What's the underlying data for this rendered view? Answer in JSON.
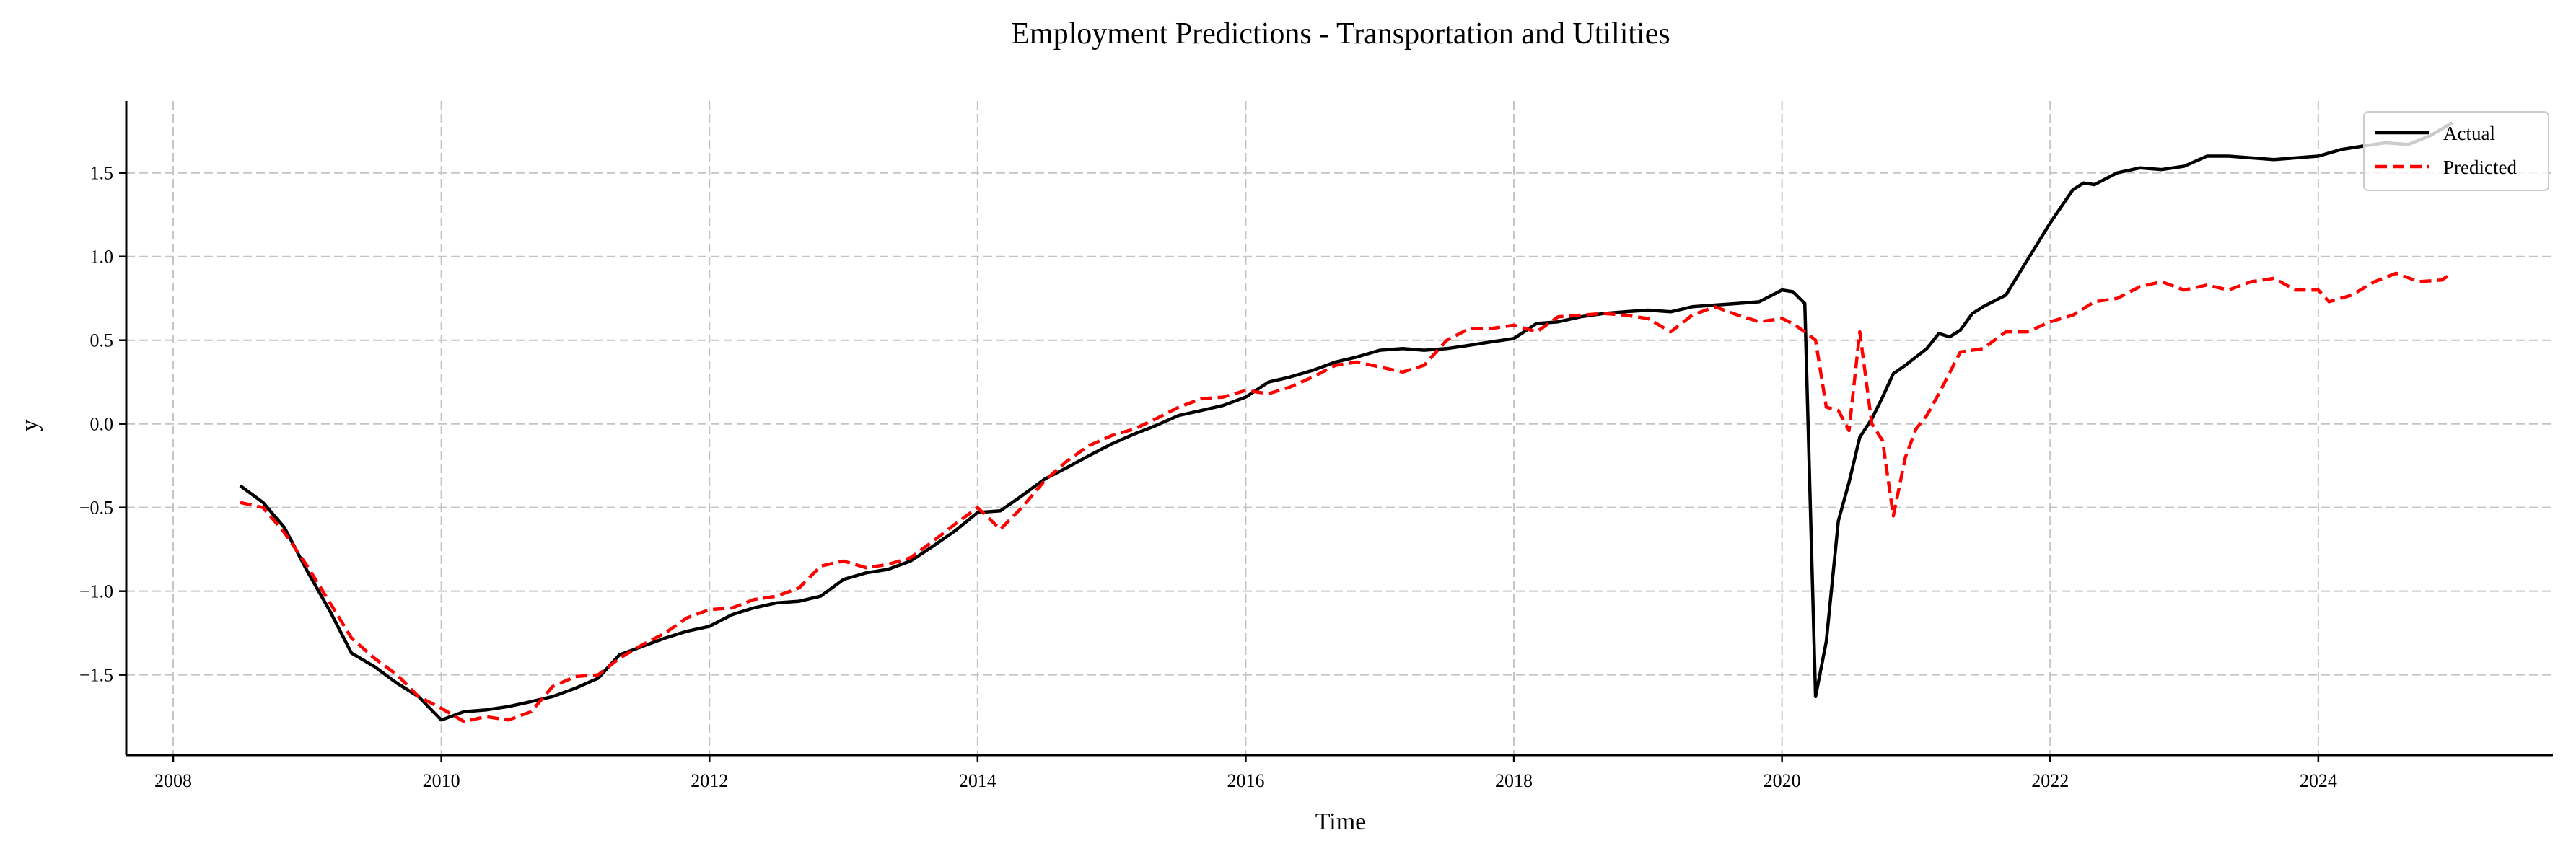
{
  "chart_data": {
    "type": "line",
    "title": "Employment Predictions - Transportation and Utilities",
    "xlabel": "Time",
    "ylabel": "y",
    "xlim": [
      2007.65,
      2025.75
    ],
    "ylim": [
      -1.98,
      1.93
    ],
    "x_ticks": [
      2008,
      2010,
      2012,
      2014,
      2016,
      2018,
      2020,
      2022,
      2024
    ],
    "x_tick_labels": [
      "2008",
      "2010",
      "2012",
      "2014",
      "2016",
      "2018",
      "2020",
      "2022",
      "2024"
    ],
    "y_ticks": [
      -1.5,
      -1.0,
      -0.5,
      0.0,
      0.5,
      1.0,
      1.5
    ],
    "y_tick_labels": [
      "−1.5",
      "−1.0",
      "−0.5",
      "0.0",
      "0.5",
      "1.0",
      "1.5"
    ],
    "grid": true,
    "legend_position": "top-right",
    "series": [
      {
        "name": "Actual",
        "color": "#000000",
        "dash": "solid",
        "points": [
          [
            2008.5,
            -0.37
          ],
          [
            2008.67,
            -0.47
          ],
          [
            2008.83,
            -0.62
          ],
          [
            2009.0,
            -0.88
          ],
          [
            2009.17,
            -1.12
          ],
          [
            2009.33,
            -1.37
          ],
          [
            2009.5,
            -1.45
          ],
          [
            2009.67,
            -1.55
          ],
          [
            2009.83,
            -1.63
          ],
          [
            2010.0,
            -1.77
          ],
          [
            2010.17,
            -1.72
          ],
          [
            2010.33,
            -1.71
          ],
          [
            2010.5,
            -1.69
          ],
          [
            2010.67,
            -1.66
          ],
          [
            2010.83,
            -1.63
          ],
          [
            2011.0,
            -1.58
          ],
          [
            2011.17,
            -1.52
          ],
          [
            2011.33,
            -1.38
          ],
          [
            2011.5,
            -1.33
          ],
          [
            2011.67,
            -1.28
          ],
          [
            2011.83,
            -1.24
          ],
          [
            2012.0,
            -1.21
          ],
          [
            2012.17,
            -1.14
          ],
          [
            2012.33,
            -1.1
          ],
          [
            2012.5,
            -1.07
          ],
          [
            2012.67,
            -1.06
          ],
          [
            2012.83,
            -1.03
          ],
          [
            2013.0,
            -0.93
          ],
          [
            2013.17,
            -0.89
          ],
          [
            2013.33,
            -0.87
          ],
          [
            2013.5,
            -0.82
          ],
          [
            2013.67,
            -0.73
          ],
          [
            2013.83,
            -0.64
          ],
          [
            2014.0,
            -0.53
          ],
          [
            2014.17,
            -0.52
          ],
          [
            2014.33,
            -0.43
          ],
          [
            2014.5,
            -0.33
          ],
          [
            2014.67,
            -0.26
          ],
          [
            2014.83,
            -0.19
          ],
          [
            2015.0,
            -0.12
          ],
          [
            2015.17,
            -0.06
          ],
          [
            2015.33,
            -0.01
          ],
          [
            2015.5,
            0.05
          ],
          [
            2015.67,
            0.08
          ],
          [
            2015.83,
            0.11
          ],
          [
            2016.0,
            0.16
          ],
          [
            2016.17,
            0.25
          ],
          [
            2016.33,
            0.28
          ],
          [
            2016.5,
            0.32
          ],
          [
            2016.67,
            0.37
          ],
          [
            2016.83,
            0.4
          ],
          [
            2017.0,
            0.44
          ],
          [
            2017.17,
            0.45
          ],
          [
            2017.33,
            0.44
          ],
          [
            2017.5,
            0.45
          ],
          [
            2017.67,
            0.47
          ],
          [
            2017.83,
            0.49
          ],
          [
            2018.0,
            0.51
          ],
          [
            2018.17,
            0.6
          ],
          [
            2018.33,
            0.61
          ],
          [
            2018.5,
            0.64
          ],
          [
            2018.67,
            0.66
          ],
          [
            2018.83,
            0.67
          ],
          [
            2019.0,
            0.68
          ],
          [
            2019.17,
            0.67
          ],
          [
            2019.33,
            0.7
          ],
          [
            2019.5,
            0.71
          ],
          [
            2019.67,
            0.72
          ],
          [
            2019.83,
            0.73
          ],
          [
            2020.0,
            0.8
          ],
          [
            2020.08,
            0.79
          ],
          [
            2020.17,
            0.72
          ],
          [
            2020.25,
            -1.63
          ],
          [
            2020.33,
            -1.3
          ],
          [
            2020.42,
            -0.58
          ],
          [
            2020.5,
            -0.35
          ],
          [
            2020.58,
            -0.08
          ],
          [
            2020.67,
            0.03
          ],
          [
            2020.75,
            0.16
          ],
          [
            2020.83,
            0.3
          ],
          [
            2020.92,
            0.35
          ],
          [
            2021.0,
            0.4
          ],
          [
            2021.08,
            0.45
          ],
          [
            2021.17,
            0.54
          ],
          [
            2021.25,
            0.52
          ],
          [
            2021.33,
            0.56
          ],
          [
            2021.42,
            0.66
          ],
          [
            2021.5,
            0.7
          ],
          [
            2021.67,
            0.77
          ],
          [
            2021.83,
            0.98
          ],
          [
            2022.0,
            1.2
          ],
          [
            2022.17,
            1.4
          ],
          [
            2022.25,
            1.44
          ],
          [
            2022.33,
            1.43
          ],
          [
            2022.5,
            1.5
          ],
          [
            2022.67,
            1.53
          ],
          [
            2022.83,
            1.52
          ],
          [
            2023.0,
            1.54
          ],
          [
            2023.17,
            1.6
          ],
          [
            2023.33,
            1.6
          ],
          [
            2023.5,
            1.59
          ],
          [
            2023.67,
            1.58
          ],
          [
            2023.83,
            1.59
          ],
          [
            2024.0,
            1.6
          ],
          [
            2024.17,
            1.64
          ],
          [
            2024.33,
            1.66
          ],
          [
            2024.5,
            1.68
          ],
          [
            2024.67,
            1.67
          ],
          [
            2024.83,
            1.72
          ],
          [
            2025.0,
            1.8
          ]
        ]
      },
      {
        "name": "Predicted",
        "color": "#ff0000",
        "dash": "dashed",
        "points": [
          [
            2008.5,
            -0.47
          ],
          [
            2008.67,
            -0.5
          ],
          [
            2008.83,
            -0.65
          ],
          [
            2009.0,
            -0.85
          ],
          [
            2009.17,
            -1.07
          ],
          [
            2009.33,
            -1.28
          ],
          [
            2009.5,
            -1.4
          ],
          [
            2009.67,
            -1.5
          ],
          [
            2009.83,
            -1.63
          ],
          [
            2010.0,
            -1.7
          ],
          [
            2010.17,
            -1.78
          ],
          [
            2010.33,
            -1.75
          ],
          [
            2010.5,
            -1.77
          ],
          [
            2010.67,
            -1.72
          ],
          [
            2010.83,
            -1.57
          ],
          [
            2011.0,
            -1.51
          ],
          [
            2011.17,
            -1.5
          ],
          [
            2011.33,
            -1.4
          ],
          [
            2011.5,
            -1.32
          ],
          [
            2011.67,
            -1.25
          ],
          [
            2011.83,
            -1.16
          ],
          [
            2012.0,
            -1.11
          ],
          [
            2012.17,
            -1.1
          ],
          [
            2012.33,
            -1.05
          ],
          [
            2012.5,
            -1.03
          ],
          [
            2012.67,
            -0.98
          ],
          [
            2012.83,
            -0.85
          ],
          [
            2013.0,
            -0.82
          ],
          [
            2013.17,
            -0.86
          ],
          [
            2013.33,
            -0.84
          ],
          [
            2013.5,
            -0.8
          ],
          [
            2013.67,
            -0.7
          ],
          [
            2013.83,
            -0.6
          ],
          [
            2014.0,
            -0.5
          ],
          [
            2014.17,
            -0.63
          ],
          [
            2014.33,
            -0.5
          ],
          [
            2014.5,
            -0.34
          ],
          [
            2014.67,
            -0.22
          ],
          [
            2014.83,
            -0.13
          ],
          [
            2015.0,
            -0.07
          ],
          [
            2015.17,
            -0.03
          ],
          [
            2015.33,
            0.03
          ],
          [
            2015.5,
            0.1
          ],
          [
            2015.67,
            0.15
          ],
          [
            2015.83,
            0.16
          ],
          [
            2016.0,
            0.2
          ],
          [
            2016.17,
            0.18
          ],
          [
            2016.33,
            0.22
          ],
          [
            2016.5,
            0.28
          ],
          [
            2016.67,
            0.35
          ],
          [
            2016.83,
            0.37
          ],
          [
            2017.0,
            0.34
          ],
          [
            2017.17,
            0.31
          ],
          [
            2017.33,
            0.35
          ],
          [
            2017.5,
            0.5
          ],
          [
            2017.67,
            0.57
          ],
          [
            2017.83,
            0.57
          ],
          [
            2018.0,
            0.59
          ],
          [
            2018.17,
            0.55
          ],
          [
            2018.33,
            0.64
          ],
          [
            2018.5,
            0.65
          ],
          [
            2018.67,
            0.66
          ],
          [
            2018.83,
            0.65
          ],
          [
            2019.0,
            0.63
          ],
          [
            2019.17,
            0.55
          ],
          [
            2019.33,
            0.65
          ],
          [
            2019.5,
            0.7
          ],
          [
            2019.67,
            0.65
          ],
          [
            2019.83,
            0.61
          ],
          [
            2020.0,
            0.63
          ],
          [
            2020.08,
            0.6
          ],
          [
            2020.17,
            0.55
          ],
          [
            2020.25,
            0.5
          ],
          [
            2020.33,
            0.1
          ],
          [
            2020.42,
            0.08
          ],
          [
            2020.5,
            -0.04
          ],
          [
            2020.58,
            0.55
          ],
          [
            2020.67,
            0.0
          ],
          [
            2020.75,
            -0.1
          ],
          [
            2020.83,
            -0.55
          ],
          [
            2020.92,
            -0.2
          ],
          [
            2021.0,
            -0.03
          ],
          [
            2021.08,
            0.05
          ],
          [
            2021.17,
            0.18
          ],
          [
            2021.33,
            0.43
          ],
          [
            2021.5,
            0.45
          ],
          [
            2021.67,
            0.55
          ],
          [
            2021.83,
            0.55
          ],
          [
            2022.0,
            0.61
          ],
          [
            2022.17,
            0.65
          ],
          [
            2022.33,
            0.73
          ],
          [
            2022.5,
            0.75
          ],
          [
            2022.67,
            0.82
          ],
          [
            2022.83,
            0.85
          ],
          [
            2023.0,
            0.8
          ],
          [
            2023.17,
            0.83
          ],
          [
            2023.33,
            0.8
          ],
          [
            2023.5,
            0.85
          ],
          [
            2023.67,
            0.87
          ],
          [
            2023.83,
            0.8
          ],
          [
            2024.0,
            0.8
          ],
          [
            2024.08,
            0.73
          ],
          [
            2024.25,
            0.77
          ],
          [
            2024.42,
            0.85
          ],
          [
            2024.58,
            0.9
          ],
          [
            2024.75,
            0.85
          ],
          [
            2024.92,
            0.86
          ],
          [
            2025.0,
            0.9
          ]
        ]
      }
    ]
  }
}
